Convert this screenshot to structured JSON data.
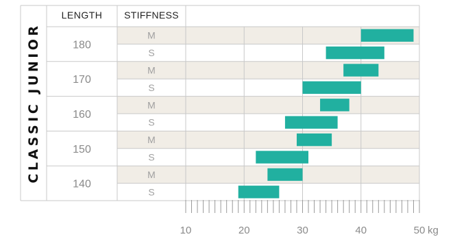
{
  "chart_data": {
    "type": "bar",
    "title": "CLASSIC JUNIOR",
    "headers": {
      "length": "LENGTH",
      "stiffness": "STIFFNESS"
    },
    "xlim": [
      10,
      50
    ],
    "x_ticks": [
      10,
      20,
      30,
      40,
      50
    ],
    "x_tick_labels": [
      "10",
      "20",
      "30",
      "40",
      "50"
    ],
    "x_unit": "kg",
    "groups": [
      {
        "length": "180",
        "rows": [
          {
            "stiffness": "M",
            "range": [
              40,
              49
            ]
          },
          {
            "stiffness": "S",
            "range": [
              34,
              44
            ]
          }
        ]
      },
      {
        "length": "170",
        "rows": [
          {
            "stiffness": "M",
            "range": [
              37,
              43
            ]
          },
          {
            "stiffness": "S",
            "range": [
              30,
              40
            ]
          }
        ]
      },
      {
        "length": "160",
        "rows": [
          {
            "stiffness": "M",
            "range": [
              33,
              38
            ]
          },
          {
            "stiffness": "S",
            "range": [
              27,
              36
            ]
          }
        ]
      },
      {
        "length": "150",
        "rows": [
          {
            "stiffness": "M",
            "range": [
              29,
              35
            ]
          },
          {
            "stiffness": "S",
            "range": [
              22,
              31
            ]
          }
        ]
      },
      {
        "length": "140",
        "rows": [
          {
            "stiffness": "M",
            "range": [
              24,
              30
            ]
          },
          {
            "stiffness": "S",
            "range": [
              19,
              26
            ]
          }
        ]
      }
    ],
    "colors": {
      "bar": "#21b0a0",
      "row_shade": "#f1ede6",
      "grid": "#c8c8c8",
      "text": "#8a8a8a",
      "title": "#111111"
    }
  }
}
